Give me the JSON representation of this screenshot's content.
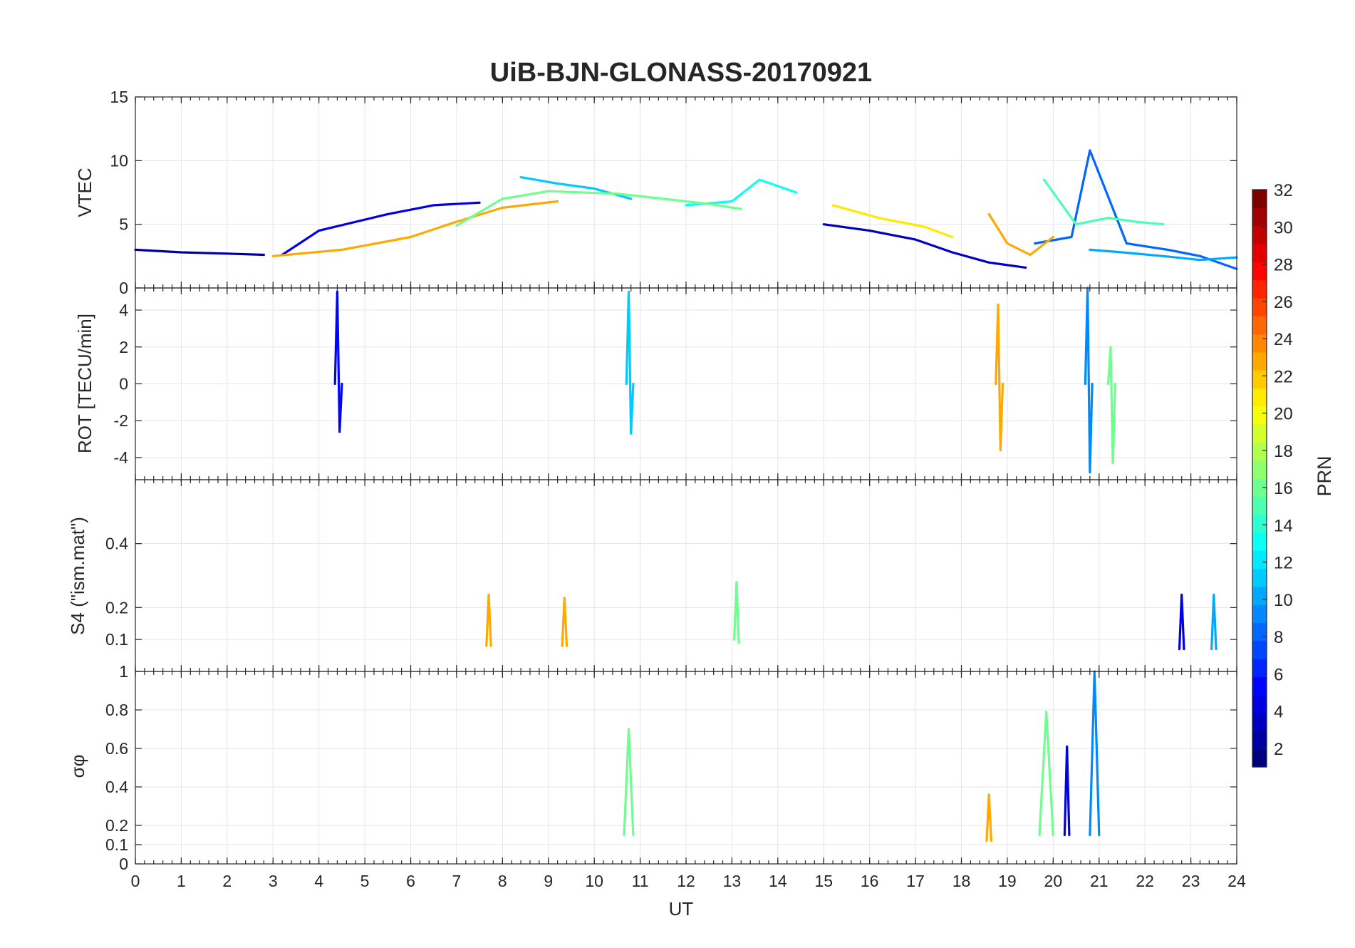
{
  "chart_data": {
    "type": "line",
    "title": "UiB-BJN-GLONASS-20170921",
    "xlabel": "UT",
    "x_range": [
      0,
      24
    ],
    "x_ticks": [
      "0",
      "1",
      "2",
      "3",
      "4",
      "5",
      "6",
      "7",
      "8",
      "9",
      "10",
      "11",
      "12",
      "13",
      "14",
      "15",
      "16",
      "17",
      "18",
      "19",
      "20",
      "21",
      "22",
      "23",
      "24"
    ],
    "grid": true,
    "colorbar": {
      "label": "PRN",
      "colormap": "jet",
      "range": [
        1,
        32
      ],
      "ticks": [
        "2",
        "4",
        "6",
        "8",
        "10",
        "12",
        "14",
        "16",
        "18",
        "20",
        "22",
        "24",
        "26",
        "28",
        "30",
        "32"
      ],
      "placement": "right"
    },
    "panels": [
      {
        "id": "vtec",
        "ylabel": "VTEC",
        "ylim": [
          0,
          15
        ],
        "yticks": [
          "0",
          "5",
          "10",
          "15"
        ],
        "series": [
          {
            "prn": 2,
            "x": [
              0,
              1,
              2,
              2.8
            ],
            "values": [
              3.0,
              2.8,
              2.7,
              2.6
            ]
          },
          {
            "prn": 4,
            "x": [
              3.2,
              4.0,
              5.5,
              6.5,
              7.5
            ],
            "values": [
              2.6,
              4.5,
              5.8,
              6.5,
              6.7
            ]
          },
          {
            "prn": 11,
            "x": [
              8.4,
              9.2,
              10.0,
              10.8
            ],
            "values": [
              8.7,
              8.2,
              7.8,
              7.0
            ]
          },
          {
            "prn": 13,
            "x": [
              12.0,
              13.0,
              13.6,
              14.4
            ],
            "values": [
              6.5,
              6.8,
              8.5,
              7.5
            ]
          },
          {
            "prn": 3,
            "x": [
              15.0,
              16.0,
              17.0,
              17.8,
              18.6,
              19.4
            ],
            "values": [
              5.0,
              4.5,
              3.8,
              2.8,
              2.0,
              1.6
            ]
          },
          {
            "prn": 8,
            "x": [
              19.6,
              20.4,
              20.8,
              21.6,
              22.5,
              23.2,
              24.0
            ],
            "values": [
              3.5,
              4.0,
              10.8,
              3.5,
              3.0,
              2.5,
              1.5
            ]
          },
          {
            "prn": 23,
            "x": [
              3.0,
              4.5,
              6.0,
              7.0,
              8.0,
              9.2
            ],
            "values": [
              2.5,
              3.0,
              4.0,
              5.2,
              6.3,
              6.8
            ]
          },
          {
            "prn": 21,
            "x": [
              15.2,
              16.2,
              17.2,
              17.8
            ],
            "values": [
              6.5,
              5.5,
              4.8,
              4.0
            ]
          },
          {
            "prn": 16,
            "x": [
              7.0,
              8.0,
              9.0,
              10.5,
              11.5,
              12.5,
              13.2
            ],
            "values": [
              4.9,
              7.0,
              7.6,
              7.4,
              7.0,
              6.6,
              6.2
            ]
          },
          {
            "prn": 23,
            "x": [
              18.6,
              19.0,
              19.5,
              20.0
            ],
            "values": [
              5.8,
              3.5,
              2.6,
              4.0
            ]
          },
          {
            "prn": 15,
            "x": [
              19.8,
              20.5,
              21.2,
              21.8,
              22.4
            ],
            "values": [
              8.5,
              5.0,
              5.5,
              5.2,
              5.0
            ]
          },
          {
            "prn": 10,
            "x": [
              20.8,
              21.5,
              22.4,
              23.2,
              24.0
            ],
            "values": [
              3.0,
              2.8,
              2.5,
              2.2,
              2.4
            ]
          }
        ]
      },
      {
        "id": "rot",
        "ylabel": "ROT [TECU/min]",
        "ylim": [
          -5.2,
          5.2
        ],
        "yticks": [
          "-4",
          "-2",
          "0",
          "2",
          "4"
        ],
        "series": [
          {
            "prn": 5,
            "x": [
              4.35,
              4.4,
              4.45,
              4.5
            ],
            "values": [
              0,
              5.0,
              -2.6,
              0
            ]
          },
          {
            "prn": 11,
            "x": [
              10.7,
              10.75,
              10.8,
              10.85
            ],
            "values": [
              0,
              5.0,
              -2.7,
              0
            ]
          },
          {
            "prn": 23,
            "x": [
              18.75,
              18.8,
              18.85,
              18.9
            ],
            "values": [
              0,
              4.3,
              -3.6,
              0
            ]
          },
          {
            "prn": 9,
            "x": [
              20.7,
              20.75,
              20.8,
              20.85
            ],
            "values": [
              0,
              5.2,
              -4.8,
              0
            ]
          },
          {
            "prn": 16,
            "x": [
              21.2,
              21.25,
              21.3,
              21.35
            ],
            "values": [
              0,
              2.0,
              -4.3,
              0
            ]
          }
        ]
      },
      {
        "id": "s4",
        "ylabel": "S4 (\"ism.mat\")",
        "ylim": [
          0,
          0.6
        ],
        "yticks": [
          "0.1",
          "0.2",
          "0.4"
        ],
        "series": [
          {
            "prn": 16,
            "x": [
              13.05,
              13.1,
              13.15
            ],
            "values": [
              0.1,
              0.28,
              0.09
            ]
          },
          {
            "prn": 23,
            "x": [
              7.65,
              7.7,
              7.75
            ],
            "values": [
              0.08,
              0.24,
              0.08
            ]
          },
          {
            "prn": 23,
            "x": [
              9.3,
              9.35,
              9.4
            ],
            "values": [
              0.08,
              0.23,
              0.08
            ]
          },
          {
            "prn": 4,
            "x": [
              22.75,
              22.8,
              22.85
            ],
            "values": [
              0.07,
              0.24,
              0.07
            ]
          },
          {
            "prn": 10,
            "x": [
              23.45,
              23.5,
              23.55
            ],
            "values": [
              0.07,
              0.24,
              0.07
            ]
          }
        ]
      },
      {
        "id": "sigma-phi",
        "ylabel": "σφ",
        "ylim": [
          0,
          1
        ],
        "yticks": [
          "0",
          "0.1",
          "0.2",
          "0.4",
          "0.6",
          "0.8",
          "1"
        ],
        "series": [
          {
            "prn": 16,
            "x": [
              10.65,
              10.75,
              10.85
            ],
            "values": [
              0.15,
              0.7,
              0.15
            ]
          },
          {
            "prn": 16,
            "x": [
              19.7,
              19.85,
              20.0
            ],
            "values": [
              0.15,
              0.79,
              0.15
            ]
          },
          {
            "prn": 9,
            "x": [
              20.8,
              20.9,
              21.0
            ],
            "values": [
              0.15,
              1.0,
              0.15
            ]
          },
          {
            "prn": 4,
            "x": [
              20.25,
              20.3,
              20.35
            ],
            "values": [
              0.15,
              0.61,
              0.15
            ]
          },
          {
            "prn": 23,
            "x": [
              18.55,
              18.6,
              18.65
            ],
            "values": [
              0.12,
              0.36,
              0.12
            ]
          }
        ]
      }
    ]
  }
}
